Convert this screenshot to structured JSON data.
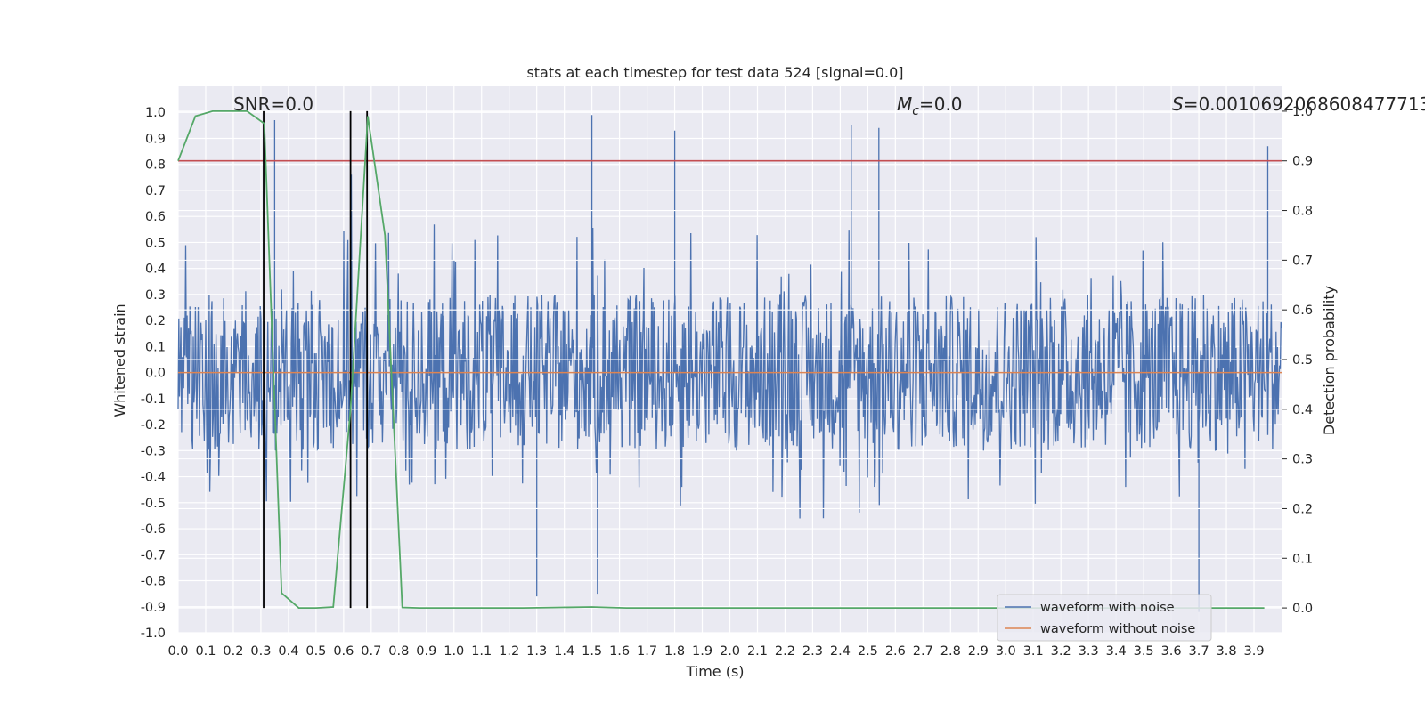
{
  "chart_data": {
    "type": "line",
    "title": "stats at each timestep for test data 524 [signal=0.0]",
    "xlabel": "Time (s)",
    "ylabel": "Whitened strain",
    "ylabel_right": "Detection probability",
    "xlim": [
      0.0,
      4.0
    ],
    "ylim": [
      -1.0,
      1.1
    ],
    "ylim_right": [
      -0.05,
      1.05
    ],
    "x_ticks": [
      "0.0",
      "0.1",
      "0.2",
      "0.3",
      "0.4",
      "0.5",
      "0.6",
      "0.7",
      "0.8",
      "0.9",
      "1.0",
      "1.1",
      "1.2",
      "1.3",
      "1.4",
      "1.5",
      "1.6",
      "1.7",
      "1.8",
      "1.9",
      "2.0",
      "2.1",
      "2.2",
      "2.3",
      "2.4",
      "2.5",
      "2.6",
      "2.7",
      "2.8",
      "2.9",
      "3.0",
      "3.1",
      "3.2",
      "3.3",
      "3.4",
      "3.5",
      "3.6",
      "3.7",
      "3.8",
      "3.9"
    ],
    "y_ticks": [
      "1.0",
      "0.9",
      "0.8",
      "0.7",
      "0.6",
      "0.5",
      "0.4",
      "0.3",
      "0.2",
      "0.1",
      "0.0",
      "-0.1",
      "-0.2",
      "-0.3",
      "-0.4",
      "-0.5",
      "-0.6",
      "-0.7",
      "-0.8",
      "-0.9",
      "-1.0"
    ],
    "y_right_ticks": [
      "1.0",
      "0.9",
      "0.8",
      "0.7",
      "0.6",
      "0.5",
      "0.4",
      "0.3",
      "0.2",
      "0.1",
      "0.0"
    ],
    "annotations": {
      "snr": "SNR=0.0",
      "mc_symbol": "M",
      "mc_sub": "c",
      "mc_value": "=0.0",
      "s_symbol": "S",
      "s_value": "=0.0010692068608477713"
    },
    "threshold_line": {
      "y_right": 0.9,
      "color": "#c44e52"
    },
    "vertical_lines_x": [
      0.31,
      0.625,
      0.685
    ],
    "series": [
      {
        "name": "waveform with noise",
        "color": "#4c72b0",
        "description_values": {
          "x_start": 0.0,
          "x_end": 4.0,
          "typical_range": [
            -0.45,
            0.45
          ],
          "max": 1.0,
          "min": -0.9
        }
      },
      {
        "name": "waveform without noise",
        "color": "#dd8452",
        "x": [
          0.0,
          4.0
        ],
        "y": [
          0.0,
          0.0
        ]
      },
      {
        "name": "",
        "color": "#55a868",
        "axis": "right",
        "x": [
          0.0,
          0.0625,
          0.125,
          0.1875,
          0.25,
          0.3125,
          0.375,
          0.4375,
          0.5,
          0.5625,
          0.625,
          0.6875,
          0.75,
          0.8125,
          0.875,
          1.0,
          1.25,
          1.5,
          1.625,
          2.0,
          2.5,
          3.0,
          3.5,
          3.9375
        ],
        "y": [
          0.9,
          0.99,
          1.0,
          1.0,
          1.0,
          0.975,
          0.03,
          0.0,
          0.0,
          0.002,
          0.4,
          0.99,
          0.75,
          0.001,
          0.0,
          0.0,
          0.0,
          0.002,
          0.0,
          0.0,
          0.0,
          0.0,
          0.0,
          0.0
        ]
      }
    ],
    "legend": {
      "position": "lower right",
      "entries": [
        "waveform with noise",
        "waveform without noise"
      ]
    },
    "grid": true,
    "colors": {
      "background": "#eaeaf2",
      "grid": "#ffffff",
      "vline": "#000000"
    }
  }
}
